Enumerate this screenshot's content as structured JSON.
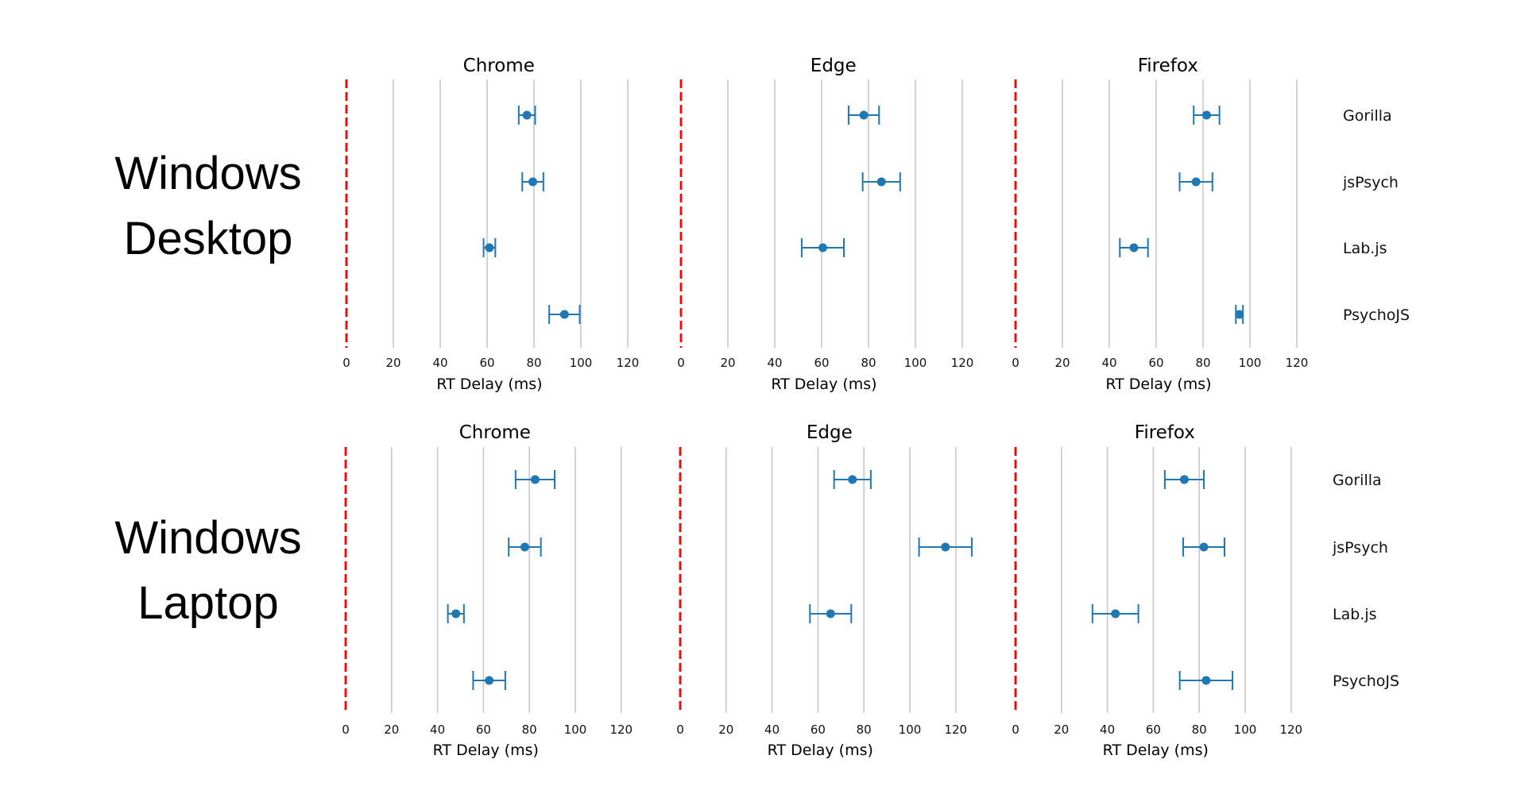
{
  "colors": {
    "marker": "#1f77b4",
    "grid": "#c8c8c8",
    "reference": "#ff0000"
  },
  "rows": [
    {
      "label_line1": "Windows",
      "label_line2": "Desktop"
    },
    {
      "label_line1": "Windows",
      "label_line2": "Laptop"
    }
  ],
  "chart_data": [
    {
      "type": "scatter",
      "row": 0,
      "title": "Chrome",
      "xlabel": "RT Delay (ms)",
      "xlim": [
        0,
        130
      ],
      "xticks": [
        0,
        20,
        40,
        60,
        80,
        100,
        120
      ],
      "grid": true,
      "reference_line": 0,
      "categories": [
        "Gorilla",
        "jsPsych",
        "Lab.js",
        "PsychoJS"
      ],
      "values": [
        77,
        79.5,
        61,
        93
      ],
      "error": [
        3.5,
        4.5,
        2.5,
        6.5
      ]
    },
    {
      "type": "scatter",
      "row": 0,
      "title": "Edge",
      "xlabel": "RT Delay (ms)",
      "xlim": [
        0,
        130
      ],
      "xticks": [
        0,
        20,
        40,
        60,
        80,
        100,
        120
      ],
      "grid": true,
      "reference_line": 0,
      "categories": [
        "Gorilla",
        "jsPsych",
        "Lab.js",
        "PsychoJS"
      ],
      "values": [
        78,
        85.5,
        60.5,
        null
      ],
      "error": [
        6.5,
        8,
        9,
        null
      ]
    },
    {
      "type": "scatter",
      "row": 0,
      "title": "Firefox",
      "xlabel": "RT Delay (ms)",
      "xlim": [
        0,
        130
      ],
      "xticks": [
        0,
        20,
        40,
        60,
        80,
        100,
        120
      ],
      "grid": true,
      "reference_line": 0,
      "categories": [
        "Gorilla",
        "jsPsych",
        "Lab.js",
        "PsychoJS"
      ],
      "values": [
        81.5,
        77,
        50.5,
        95.5
      ],
      "error": [
        5.5,
        7,
        6,
        1.5
      ]
    },
    {
      "type": "scatter",
      "row": 1,
      "title": "Chrome",
      "xlabel": "RT Delay (ms)",
      "xlim": [
        0,
        130
      ],
      "xticks": [
        0,
        20,
        40,
        60,
        80,
        100,
        120
      ],
      "grid": true,
      "reference_line": 0,
      "categories": [
        "Gorilla",
        "jsPsych",
        "Lab.js",
        "PsychoJS"
      ],
      "values": [
        82.5,
        78,
        48,
        62.5
      ],
      "error": [
        8.5,
        7,
        3.5,
        7
      ]
    },
    {
      "type": "scatter",
      "row": 1,
      "title": "Edge",
      "xlabel": "RT Delay (ms)",
      "xlim": [
        0,
        130
      ],
      "xticks": [
        0,
        20,
        40,
        60,
        80,
        100,
        120
      ],
      "grid": true,
      "reference_line": 0,
      "categories": [
        "Gorilla",
        "jsPsych",
        "Lab.js",
        "PsychoJS"
      ],
      "values": [
        75,
        115.5,
        65.5,
        null
      ],
      "error": [
        8,
        11.5,
        9,
        null
      ]
    },
    {
      "type": "scatter",
      "row": 1,
      "title": "Firefox",
      "xlabel": "RT Delay (ms)",
      "xlim": [
        0,
        130
      ],
      "xticks": [
        0,
        20,
        40,
        60,
        80,
        100,
        120
      ],
      "grid": true,
      "reference_line": 0,
      "categories": [
        "Gorilla",
        "jsPsych",
        "Lab.js",
        "PsychoJS"
      ],
      "values": [
        73.5,
        82,
        43.5,
        83
      ],
      "error": [
        8.5,
        9,
        10,
        11.5
      ]
    }
  ]
}
